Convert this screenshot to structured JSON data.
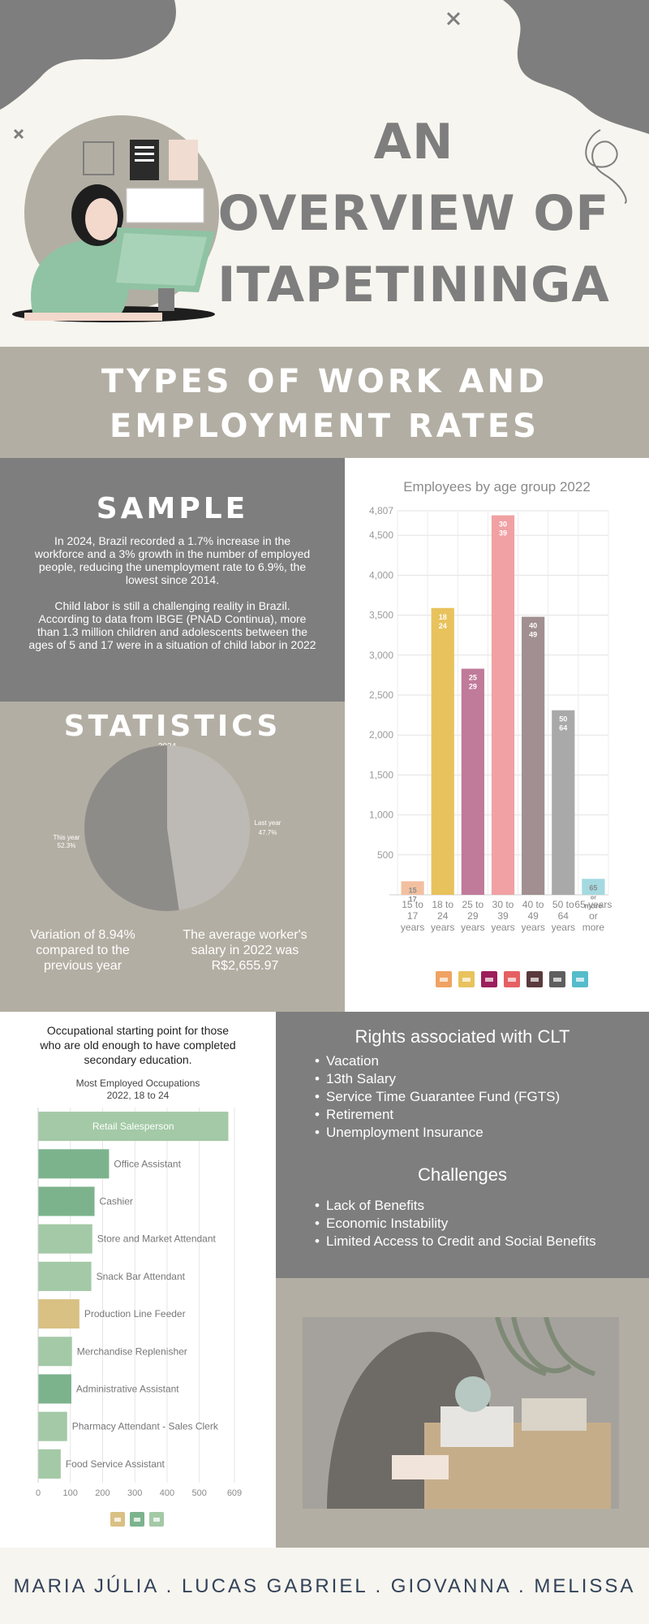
{
  "header": {
    "title_lines": [
      "AN",
      "OVERVIEW OF",
      "ITAPETININGA"
    ]
  },
  "banner": {
    "lines": [
      "TYPES OF WORK AND",
      "EMPLOYMENT RATES"
    ]
  },
  "sample": {
    "heading": "SAMPLE",
    "paragraph1": "In 2024, Brazil recorded a 1.7% increase in the workforce and a 3% growth in the number of employed people, reducing the unemployment rate to 6.9%, the lowest since 2014.",
    "paragraph2": "Child labor is still a challenging reality in Brazil. According to data from IBGE (PNAD Continua), more than 1.3 million children and adolescents between the ages of 5 and 17 were in a situation of child labor in 2022"
  },
  "statistics": {
    "heading": "STATISTICS",
    "variation_text": "Variation of 8.94% compared to the previous year",
    "salary_text": "The average worker's salary in 2022 was R$2,655.97"
  },
  "chart_data": [
    {
      "type": "pie",
      "title": "2024",
      "labels": [
        "This year",
        "Last year"
      ],
      "label_values": [
        "52.3%",
        "47.7%"
      ],
      "values": [
        52.3,
        47.7
      ],
      "colors": [
        "#8e8c89",
        "#bdbab5"
      ]
    },
    {
      "type": "bar",
      "title": "Employees by age group 2022",
      "categories": [
        "15 to 17 years",
        "18 to 24 years",
        "25 to 29 years",
        "30 to 39 years",
        "40 to 49 years",
        "50 to 64 years",
        "65 years or more"
      ],
      "bar_labels": [
        "15\n17",
        "18\n24",
        "25\n29",
        "30\n39",
        "40\n49",
        "50\n64",
        "65\nor\nmore"
      ],
      "values": [
        170,
        3590,
        2830,
        4750,
        3480,
        2310,
        200
      ],
      "yticks": [
        500,
        1000,
        1500,
        2000,
        2500,
        3000,
        3500,
        4000,
        4500,
        4807
      ],
      "ytick_labels": [
        "500",
        "1,000",
        "1,500",
        "2,000",
        "2,500",
        "3,000",
        "3,500",
        "4,000",
        "4,500",
        "4,807"
      ],
      "ylim": [
        0,
        4807
      ],
      "colors": [
        "#f2c0a1",
        "#e8c25c",
        "#c07a9a",
        "#f1a1a3",
        "#a18f91",
        "#a9a9a9",
        "#a4d9e0"
      ],
      "legend_colors": [
        "#f0a263",
        "#e8c25c",
        "#9c1e5c",
        "#e55f62",
        "#5a3a3c",
        "#5e5e5e",
        "#55bccb"
      ],
      "grid": true
    },
    {
      "type": "bar",
      "orientation": "horizontal",
      "title": "Most Employed Occupations 2022, 18 to 24",
      "categories": [
        "Retail Salesperson",
        "Office Assistant",
        "Cashier",
        "Store and Market Attendant",
        "Snack Bar Attendant",
        "Production Line Feeder",
        "Merchandise Replenisher",
        "Administrative Assistant",
        "Pharmacy Attendant - Sales Clerk",
        "Food Service Assistant"
      ],
      "values": [
        590,
        220,
        175,
        168,
        165,
        128,
        105,
        103,
        90,
        70
      ],
      "colors": [
        "#a3c9a6",
        "#7cb38d",
        "#7cb38d",
        "#a3c9a6",
        "#a3c9a6",
        "#d9c083",
        "#a3c9a6",
        "#7cb38d",
        "#a3c9a6",
        "#a3c9a6"
      ],
      "xticks": [
        0,
        100,
        200,
        300,
        400,
        500,
        609
      ],
      "xlim": [
        0,
        609
      ],
      "legend_colors": [
        "#d9c083",
        "#7cb38d",
        "#a3c9a6"
      ],
      "grid": true
    }
  ],
  "occupations": {
    "intro": "Occupational starting point for those who are old enough to have completed secondary education.",
    "chart_title_line1": "Most Employed Occupations",
    "chart_title_line2": "2022, 18 to 24"
  },
  "rights": {
    "heading": "Rights associated with CLT",
    "items": [
      "Vacation",
      "13th Salary",
      "Service Time Guarantee Fund (FGTS)",
      "Retirement",
      "Unemployment Insurance"
    ]
  },
  "challenges": {
    "heading": "Challenges",
    "items": [
      "Lack of Benefits",
      "Economic Instability",
      "Limited Access to Credit and Social Benefits"
    ]
  },
  "footer": {
    "authors": "MARIA JÚLIA . LUCAS GABRIEL . GIOVANNA . MELISSA"
  },
  "colors": {
    "dark_gray": "#7e7e7e",
    "taupe": "#b3aea3",
    "cream": "#f6f5ef",
    "footer_text": "#33425a"
  }
}
